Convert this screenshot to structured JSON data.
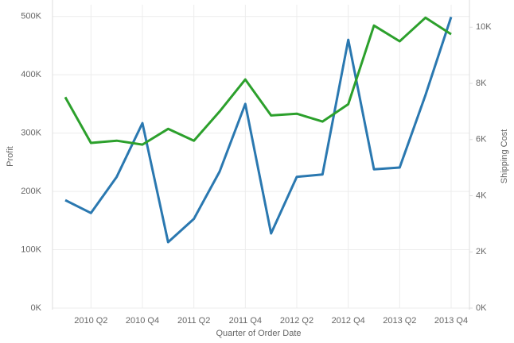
{
  "chart_data": {
    "type": "line",
    "x_label": "Quarter of Order Date",
    "y_label": "Profit",
    "y2_label": "Shipping Cost",
    "categories": [
      null,
      "2010 Q2",
      null,
      "2010 Q4",
      null,
      "2011 Q2",
      null,
      "2011 Q4",
      null,
      "2012 Q2",
      null,
      "2012 Q4",
      null,
      "2013 Q2",
      null,
      "2013 Q4"
    ],
    "series": [
      {
        "name": "Profit",
        "color": "#2a78b0",
        "values": [
          185000,
          163000,
          225000,
          317000,
          113000,
          153000,
          234000,
          350000,
          128000,
          225000,
          229000,
          460000,
          238000,
          241000,
          365000,
          499000
        ]
      },
      {
        "name": "Shipping Cost",
        "color": "#2ca02c",
        "axis": "y2",
        "values": [
          7510,
          5880,
          5960,
          5820,
          6380,
          5960,
          7000,
          8140,
          6860,
          6920,
          6640,
          7260,
          10060,
          9500,
          10340,
          9750
        ]
      }
    ],
    "ylim": [
      0,
      520000
    ],
    "yticks": [
      {
        "value": 0,
        "label": "0K"
      },
      {
        "value": 100000,
        "label": "100K"
      },
      {
        "value": 200000,
        "label": "200K"
      },
      {
        "value": 300000,
        "label": "300K"
      },
      {
        "value": 400000,
        "label": "400K"
      },
      {
        "value": 500000,
        "label": "500K"
      }
    ],
    "y2lim": [
      0,
      10800
    ],
    "y2ticks": [
      {
        "value": 0,
        "label": "0K"
      },
      {
        "value": 2000,
        "label": "2K"
      },
      {
        "value": 4000,
        "label": "4K"
      },
      {
        "value": 6000,
        "label": "6K"
      },
      {
        "value": 8000,
        "label": "8K"
      },
      {
        "value": 10000,
        "label": "10K"
      }
    ],
    "grid": true
  }
}
